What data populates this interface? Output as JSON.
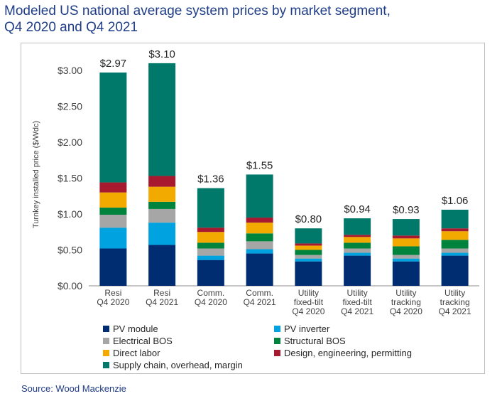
{
  "title": {
    "line1": "Modeled US national average system prices by market segment,",
    "line2": "Q4 2020 and Q4 2021"
  },
  "source": "Source: Wood Mackenzie",
  "colors": {
    "pv_module": "#002D72",
    "pv_inverter": "#00A3E0",
    "electrical_bos": "#A6A6A6",
    "structural_bos": "#00843D",
    "direct_labor": "#F2A900",
    "design": "#A6192E",
    "supply_chain": "#00796B",
    "title": "#1F3C88"
  },
  "chart_data": {
    "type": "bar",
    "stacked": true,
    "title": "Modeled US national average system prices by market segment, Q4 2020 and Q4 2021",
    "xlabel": "",
    "ylabel": "Turnkey installed price ($/Wdc)",
    "ylim": [
      0,
      3.1
    ],
    "yticks": [
      0,
      0.5,
      1.0,
      1.5,
      2.0,
      2.5,
      3.0
    ],
    "ytick_labels": [
      "$0.00",
      "$0.50",
      "$1.00",
      "$1.50",
      "$2.00",
      "$2.50",
      "$3.00"
    ],
    "categories": [
      [
        "Resi",
        "Q4 2020"
      ],
      [
        "Resi",
        "Q4 2021"
      ],
      [
        "Comm.",
        "Q4 2020"
      ],
      [
        "Comm.",
        "Q4 2021"
      ],
      [
        "Utility",
        "fixed-tilt",
        "Q4 2020"
      ],
      [
        "Utility",
        "fixed-tilt",
        "Q4 2021"
      ],
      [
        "Utility",
        "tracking",
        "Q4 2020"
      ],
      [
        "Utility",
        "tracking",
        "Q4 2021"
      ]
    ],
    "totals": [
      2.97,
      3.1,
      1.36,
      1.55,
      0.8,
      0.94,
      0.93,
      1.06
    ],
    "total_labels": [
      "$2.97",
      "$3.10",
      "$1.36",
      "$1.55",
      "$0.80",
      "$0.94",
      "$0.93",
      "$1.06"
    ],
    "series": [
      {
        "name": "PV module",
        "key": "pv_module",
        "values": [
          0.52,
          0.57,
          0.36,
          0.45,
          0.34,
          0.42,
          0.34,
          0.42
        ]
      },
      {
        "name": "PV inverter",
        "key": "pv_inverter",
        "values": [
          0.29,
          0.31,
          0.06,
          0.06,
          0.04,
          0.04,
          0.04,
          0.04
        ]
      },
      {
        "name": "Electrical BOS",
        "key": "electrical_bos",
        "values": [
          0.18,
          0.19,
          0.1,
          0.11,
          0.05,
          0.06,
          0.05,
          0.06
        ]
      },
      {
        "name": "Structural BOS",
        "key": "structural_bos",
        "values": [
          0.1,
          0.1,
          0.08,
          0.11,
          0.07,
          0.08,
          0.12,
          0.12
        ]
      },
      {
        "name": "Direct labor",
        "key": "direct_labor",
        "values": [
          0.21,
          0.21,
          0.15,
          0.15,
          0.06,
          0.08,
          0.11,
          0.12
        ]
      },
      {
        "name": "Design, engineering, permitting",
        "key": "design",
        "values": [
          0.14,
          0.15,
          0.06,
          0.07,
          0.03,
          0.03,
          0.04,
          0.04
        ]
      },
      {
        "name": "Supply chain, overhead, margin",
        "key": "supply_chain",
        "values": [
          1.53,
          1.57,
          0.55,
          0.6,
          0.21,
          0.23,
          0.23,
          0.26
        ]
      }
    ],
    "legend": {
      "placement": "bottom",
      "columns": 2
    }
  }
}
